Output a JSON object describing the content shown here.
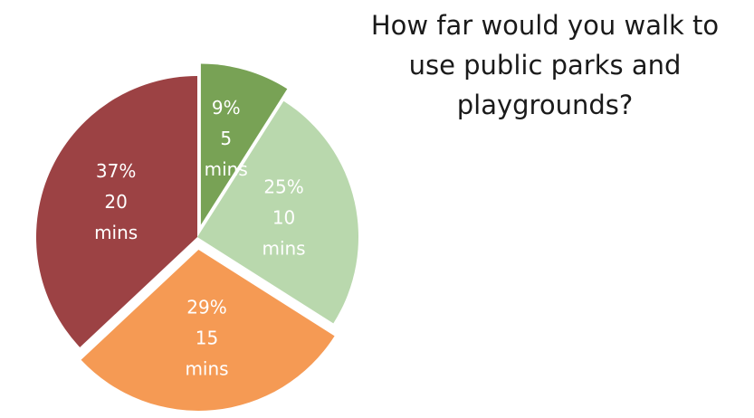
{
  "chart_data": {
    "type": "pie",
    "title": "How far would you walk to use public parks and playgrounds?",
    "slices": [
      {
        "percent_label": "9%",
        "category": "5 mins",
        "value": 9,
        "color": "#78a255",
        "exploded": true
      },
      {
        "percent_label": "25%",
        "category": "10 mins",
        "value": 25,
        "color": "#b9d8ad",
        "exploded": false
      },
      {
        "percent_label": "29%",
        "category": "15 mins",
        "value": 29,
        "color": "#f59a54",
        "exploded": true
      },
      {
        "percent_label": "37%",
        "category": "20 mins",
        "value": 37,
        "color": "#9c4244",
        "exploded": false
      }
    ]
  }
}
